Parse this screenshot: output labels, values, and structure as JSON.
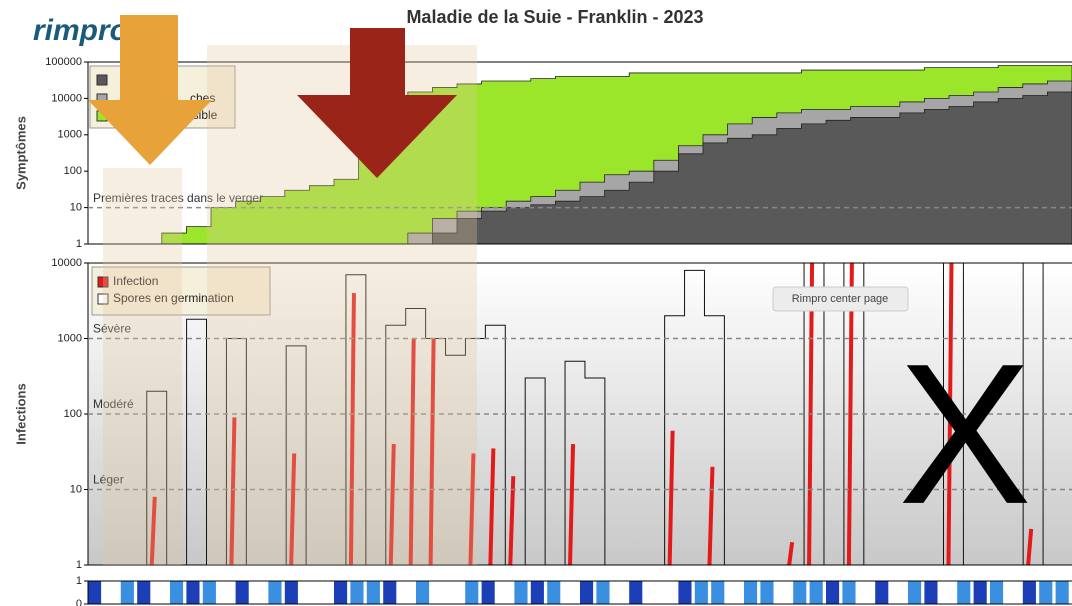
{
  "logo": "rimpro",
  "tooltip": "Rimpro center page",
  "overlay_mark": "X",
  "chart_data": [
    {
      "type": "area",
      "title": "Maladie de la Suie - Franklin - 2023",
      "y_label": "Symptômes",
      "log_scale": true,
      "ylim": [
        1,
        100000
      ],
      "yticks": [
        1,
        10,
        100,
        1000,
        10000,
        100000
      ],
      "categories": [
        null,
        null,
        null,
        null,
        null,
        null,
        null,
        null,
        null,
        null,
        null,
        null,
        null,
        null,
        null,
        null,
        null,
        null,
        null,
        null,
        null,
        null,
        null,
        null,
        null,
        null,
        null,
        null,
        null,
        null,
        null,
        null,
        null,
        null,
        null,
        null,
        null,
        null,
        null,
        null,
        null
      ],
      "series": [
        {
          "name": "visible",
          "color": "#9be52b",
          "values": [
            null,
            null,
            null,
            2,
            3,
            10,
            15,
            20,
            30,
            40,
            60,
            5000,
            10000,
            15000,
            20000,
            25000,
            30000,
            30000,
            35000,
            40000,
            40000,
            40000,
            50000,
            50000,
            50000,
            50000,
            50000,
            50000,
            50000,
            60000,
            60000,
            60000,
            60000,
            60000,
            70000,
            70000,
            70000,
            80000,
            80000,
            80000,
            80000
          ]
        },
        {
          "name": "ches",
          "color": "#a6a6a6",
          "values": [
            null,
            null,
            null,
            null,
            null,
            null,
            null,
            null,
            null,
            null,
            null,
            null,
            null,
            2,
            5,
            8,
            10,
            15,
            20,
            30,
            50,
            80,
            100,
            200,
            500,
            1000,
            2000,
            3000,
            4000,
            5000,
            5000,
            6000,
            6000,
            8000,
            10000,
            12000,
            15000,
            20000,
            25000,
            30000,
            30000
          ]
        },
        {
          "color": "#595959",
          "values": [
            null,
            null,
            null,
            null,
            null,
            null,
            null,
            null,
            null,
            null,
            null,
            null,
            null,
            1,
            2,
            5,
            8,
            10,
            12,
            15,
            20,
            30,
            50,
            100,
            300,
            600,
            800,
            1000,
            1500,
            2000,
            2500,
            3000,
            3000,
            4000,
            5000,
            6000,
            8000,
            10000,
            12000,
            15000,
            20000
          ]
        }
      ],
      "annotations": [
        {
          "text": "Premières traces dans le verger",
          "value": 10
        }
      ]
    },
    {
      "type": "infection",
      "y_label": "Infections",
      "log_scale": true,
      "ylim": [
        1,
        10000
      ],
      "yticks": [
        1,
        10,
        100,
        1000,
        10000
      ],
      "categories": [
        null,
        null,
        null,
        null,
        null,
        null,
        null,
        null,
        null,
        null,
        null,
        null,
        null,
        null,
        null,
        null,
        null,
        null,
        null,
        null,
        null,
        null,
        null,
        null,
        null,
        null,
        null,
        null,
        null,
        null,
        null,
        null,
        null,
        null,
        null,
        null,
        null,
        null,
        null,
        null,
        null,
        null,
        null,
        null,
        null,
        null,
        null,
        null,
        null,
        null
      ],
      "series": [
        {
          "name": "Infection",
          "color": "#e21a1a",
          "values": [
            null,
            null,
            null,
            8,
            null,
            null,
            null,
            90,
            null,
            null,
            30,
            null,
            null,
            4000,
            null,
            40,
            1000,
            1000,
            null,
            30,
            35,
            15,
            null,
            null,
            40,
            null,
            null,
            null,
            null,
            60,
            null,
            20,
            null,
            null,
            null,
            2,
            10000,
            null,
            10000,
            null,
            null,
            null,
            null,
            10000,
            null,
            null,
            null,
            3,
            null,
            null
          ]
        },
        {
          "name": "Spores en germination",
          "color": "#ffffff",
          "values": [
            1,
            1,
            1,
            200,
            1,
            1800,
            1,
            1000,
            1,
            1,
            800,
            1,
            1,
            7000,
            1,
            1500,
            2500,
            1000,
            600,
            1000,
            1500,
            1,
            300,
            1,
            500,
            300,
            1,
            1,
            1,
            2000,
            8000,
            2000,
            1,
            1,
            1,
            1,
            10000,
            1,
            10000,
            1,
            1,
            1,
            1,
            10000,
            1,
            1,
            1,
            10000,
            1,
            1
          ]
        }
      ],
      "annotations": [
        {
          "text": "Sévère",
          "value": 1000
        },
        {
          "text": "Modéré",
          "value": 100
        },
        {
          "text": "Léger",
          "value": 10
        }
      ]
    },
    {
      "type": "strip",
      "ylim": [
        0,
        1
      ],
      "yticks": [
        0,
        1
      ],
      "color": "#3a8fe0",
      "values": [
        1,
        0,
        1,
        1,
        0,
        1,
        1,
        1,
        0,
        1,
        0,
        1,
        1,
        0,
        0,
        1,
        1,
        1,
        1,
        0,
        1,
        0,
        0,
        1,
        1,
        0,
        1,
        1,
        1,
        0,
        1,
        1,
        0,
        1,
        0,
        0,
        1,
        1,
        1,
        0,
        1,
        1,
        0,
        1,
        1,
        1,
        1,
        0,
        1,
        0,
        1,
        1,
        0,
        1,
        1,
        1,
        0,
        1,
        1,
        1
      ]
    }
  ]
}
